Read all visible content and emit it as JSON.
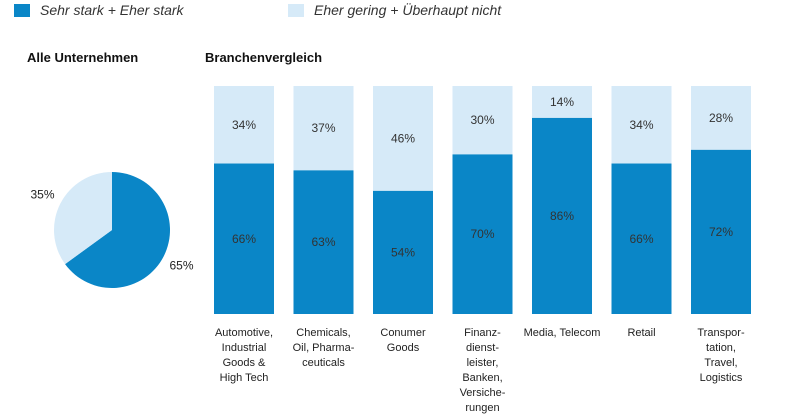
{
  "legend": [
    {
      "label": "Sehr stark + Eher stark",
      "color": "#0a86c7"
    },
    {
      "label": "Eher gering + Überhaupt nicht",
      "color": "#d6eaf8"
    }
  ],
  "pie_title": "Alle Unternehmen",
  "bars_title": "Branchenvergleich",
  "chart_data": [
    {
      "type": "pie",
      "title": "Alle Unternehmen",
      "slices": [
        {
          "name": "Sehr stark + Eher stark",
          "value": 65,
          "label": "65%",
          "color": "#0a86c7"
        },
        {
          "name": "Eher gering + Überhaupt nicht",
          "value": 35,
          "label": "35%",
          "color": "#d6eaf8"
        }
      ]
    },
    {
      "type": "bar",
      "stacked": true,
      "title": "Branchenvergleich",
      "categories": [
        [
          "Automotive,",
          "Industrial",
          "Goods &",
          "High Tech"
        ],
        [
          "Chemicals,",
          "Oil, Pharma-",
          "ceuticals"
        ],
        [
          "Conumer",
          "Goods"
        ],
        [
          "Finanz-",
          "dienst-",
          "leister,",
          "Banken,",
          "Versiche-",
          "rungen"
        ],
        [
          "Media, Telecom"
        ],
        [
          "Retail"
        ],
        [
          "Transpor-",
          "tation,",
          "Travel,",
          "Logistics"
        ]
      ],
      "series": [
        {
          "name": "Sehr stark + Eher stark",
          "color": "#0a86c7",
          "values": [
            66,
            63,
            54,
            70,
            86,
            66,
            72
          ],
          "labels": [
            "66%",
            "63%",
            "54%",
            "70%",
            "86%",
            "66%",
            "72%"
          ]
        },
        {
          "name": "Eher gering + Überhaupt nicht",
          "color": "#d6eaf8",
          "values": [
            34,
            37,
            46,
            30,
            14,
            34,
            28
          ],
          "labels": [
            "34%",
            "37%",
            "46%",
            "30%",
            "14%",
            "34%",
            "28%"
          ]
        }
      ],
      "ylim": [
        0,
        100
      ],
      "grid": false,
      "legend_position": "top-left"
    }
  ]
}
